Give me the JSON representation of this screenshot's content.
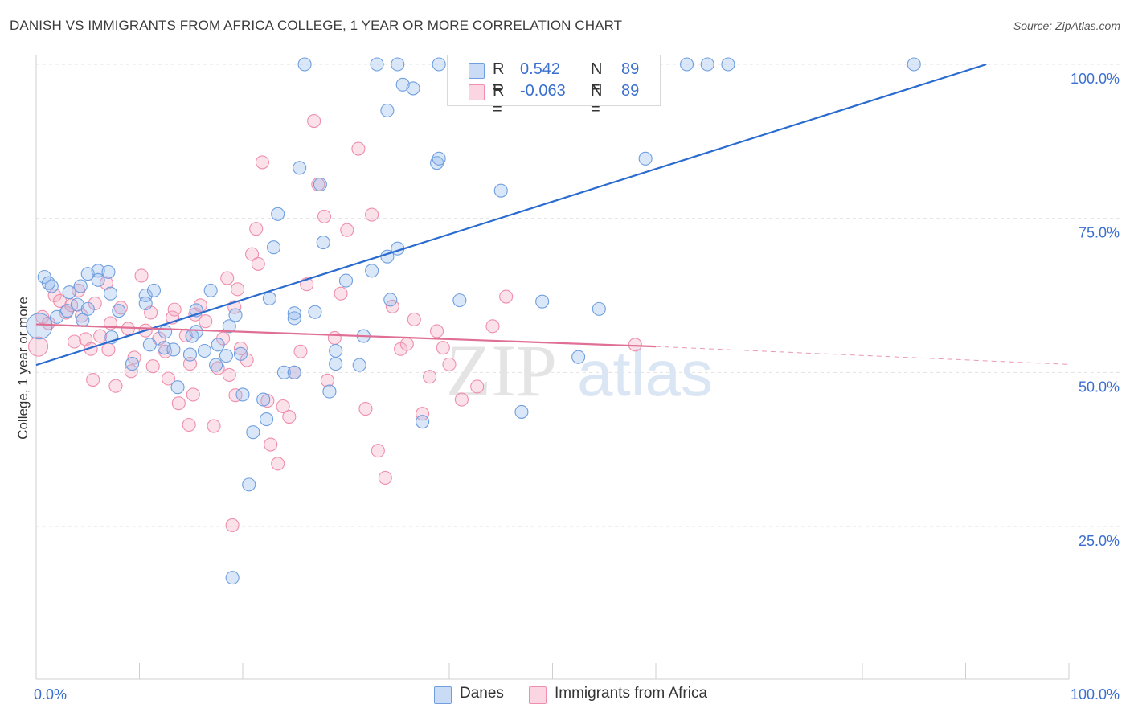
{
  "title": "DANISH VS IMMIGRANTS FROM AFRICA COLLEGE, 1 YEAR OR MORE CORRELATION CHART",
  "source": "Source: ZipAtlas.com",
  "watermark": {
    "zip": "ZIP",
    "atlas": "atlas"
  },
  "legend": {
    "rows": [
      {
        "r_label": "R =",
        "r_value": "0.542",
        "n_label": "N =",
        "n_value": "89",
        "color": "#a9c6ee",
        "border": "#6f9fe0"
      },
      {
        "r_label": "R =",
        "r_value": "-0.063",
        "n_label": "N =",
        "n_value": "89",
        "color": "#f7bfd0",
        "border": "#ef8fab"
      }
    ]
  },
  "bottom_legend": {
    "danes": "Danes",
    "africa": "Immigrants from Africa"
  },
  "chart_data": {
    "type": "scatter",
    "title": "DANISH VS IMMIGRANTS FROM AFRICA COLLEGE, 1 YEAR OR MORE CORRELATION CHART",
    "xlabel": "",
    "ylabel": "College, 1 year or more",
    "xlim": [
      0,
      100
    ],
    "ylim": [
      0,
      102
    ],
    "x_tick_labels": [
      "0.0%",
      "100.0%"
    ],
    "y_ticks": [
      25,
      50,
      75,
      100
    ],
    "y_tick_labels": [
      "25.0%",
      "50.0%",
      "75.0%",
      "100.0%"
    ],
    "grid": true,
    "legend_placement": "top-center",
    "series": [
      {
        "name": "Danes",
        "color": "#6f9fe0",
        "fill": "rgba(150,185,235,0.35)",
        "trend": {
          "x0": 0,
          "y0": 51.2,
          "x1": 92,
          "y1": 100,
          "color": "#2a6bcf"
        },
        "points": [
          [
            0.3,
            57.5
          ],
          [
            0.8,
            65.5
          ],
          [
            1.5,
            64
          ],
          [
            3,
            60
          ],
          [
            4,
            61
          ],
          [
            4.5,
            58.5
          ],
          [
            5,
            60.3
          ],
          [
            4.3,
            64
          ],
          [
            5,
            66
          ],
          [
            6,
            66.5
          ],
          [
            6,
            65
          ],
          [
            7.2,
            62.8
          ],
          [
            7,
            66.3
          ],
          [
            8,
            60
          ],
          [
            7.3,
            55.7
          ],
          [
            9.3,
            51.4
          ],
          [
            10.6,
            62.5
          ],
          [
            10.6,
            61.2
          ],
          [
            11.4,
            63.3
          ],
          [
            11,
            54.5
          ],
          [
            12.4,
            54
          ],
          [
            13.3,
            53.7
          ],
          [
            12.5,
            56.6
          ],
          [
            13.7,
            47.6
          ],
          [
            14.9,
            52.9
          ],
          [
            15.1,
            55.9
          ],
          [
            15.5,
            56.6
          ],
          [
            15.5,
            60.1
          ],
          [
            16.3,
            53.5
          ],
          [
            16.9,
            63.3
          ],
          [
            17.6,
            54.5
          ],
          [
            17.4,
            51.2
          ],
          [
            18.4,
            52.7
          ],
          [
            18.7,
            57.5
          ],
          [
            19.3,
            59.3
          ],
          [
            19.8,
            53
          ],
          [
            20,
            46.4
          ],
          [
            21,
            40.3
          ],
          [
            20.6,
            31.8
          ],
          [
            22,
            45.6
          ],
          [
            22.3,
            42.4
          ],
          [
            22.6,
            62
          ],
          [
            23,
            70.3
          ],
          [
            24,
            50
          ],
          [
            23.4,
            75.7
          ],
          [
            25,
            50
          ],
          [
            25,
            59.6
          ],
          [
            25,
            58.8
          ],
          [
            25.5,
            83.2
          ],
          [
            27,
            59.8
          ],
          [
            27.5,
            80.5
          ],
          [
            27.8,
            71.1
          ],
          [
            28.4,
            46.9
          ],
          [
            29,
            51.4
          ],
          [
            29,
            53.5
          ],
          [
            30,
            64.9
          ],
          [
            31.3,
            51.2
          ],
          [
            31.7,
            55.9
          ],
          [
            32.5,
            66.5
          ],
          [
            34,
            68.8
          ],
          [
            34.3,
            61.8
          ],
          [
            35,
            70.1
          ],
          [
            34,
            92.5
          ],
          [
            35.5,
            96.7
          ],
          [
            36.5,
            96.1
          ],
          [
            37.4,
            42
          ],
          [
            38.8,
            84
          ],
          [
            39,
            84.7
          ],
          [
            41,
            61.7
          ],
          [
            45,
            79.5
          ],
          [
            47,
            43.6
          ],
          [
            49,
            61.5
          ],
          [
            52.5,
            52.5
          ],
          [
            54.5,
            60.3
          ],
          [
            59,
            84.7
          ],
          [
            63,
            100
          ],
          [
            65,
            100
          ],
          [
            67,
            100
          ],
          [
            85,
            100
          ],
          [
            19,
            16.7
          ],
          [
            26,
            100
          ],
          [
            35,
            100
          ],
          [
            33,
            100
          ],
          [
            58,
            100
          ],
          [
            57,
            100
          ],
          [
            39,
            100
          ],
          [
            2,
            59
          ],
          [
            1.2,
            64.5
          ],
          [
            3.2,
            63
          ]
        ]
      },
      {
        "name": "Immigrants from Africa",
        "color": "#ef8fab",
        "fill": "rgba(244,170,195,0.35)",
        "trend": {
          "x0": 0,
          "y0": 57.8,
          "x1": 60,
          "y1": 54.2,
          "color": "#e06f94",
          "dash_to_x": 100,
          "dash_to_y": 51.3
        },
        "points": [
          [
            0.2,
            54.2
          ],
          [
            0.6,
            59
          ],
          [
            1.2,
            58
          ],
          [
            1.8,
            62.5
          ],
          [
            2.3,
            61.6
          ],
          [
            2.9,
            59.7
          ],
          [
            3.4,
            60.9
          ],
          [
            3.7,
            55
          ],
          [
            4.1,
            63.3
          ],
          [
            4.4,
            59.2
          ],
          [
            4.8,
            55.4
          ],
          [
            5.3,
            53.8
          ],
          [
            5.7,
            61.2
          ],
          [
            5.5,
            48.8
          ],
          [
            6.2,
            55.9
          ],
          [
            6.8,
            64.5
          ],
          [
            7.2,
            58
          ],
          [
            7,
            53.7
          ],
          [
            8.2,
            60.5
          ],
          [
            7.7,
            47.8
          ],
          [
            8.9,
            57.1
          ],
          [
            9.5,
            52.4
          ],
          [
            9.2,
            50.2
          ],
          [
            10.2,
            65.7
          ],
          [
            10.6,
            56.8
          ],
          [
            11.1,
            59.7
          ],
          [
            11.3,
            51
          ],
          [
            11.9,
            55.5
          ],
          [
            12.5,
            53.4
          ],
          [
            13.2,
            58.9
          ],
          [
            12.8,
            49
          ],
          [
            13.4,
            60.2
          ],
          [
            13.8,
            45
          ],
          [
            14.5,
            56
          ],
          [
            14.9,
            51.4
          ],
          [
            15.4,
            59.4
          ],
          [
            14.8,
            41.5
          ],
          [
            15.2,
            46.4
          ],
          [
            15.9,
            60.9
          ],
          [
            16.4,
            58.3
          ],
          [
            17.2,
            41.3
          ],
          [
            17.6,
            50.7
          ],
          [
            18.1,
            55.5
          ],
          [
            18.5,
            65.3
          ],
          [
            18.7,
            49.6
          ],
          [
            19.3,
            46.3
          ],
          [
            19.5,
            63.5
          ],
          [
            19.8,
            53.9
          ],
          [
            19.2,
            60.6
          ],
          [
            20.4,
            52
          ],
          [
            20.9,
            69.2
          ],
          [
            21.5,
            67.6
          ],
          [
            21.3,
            73.3
          ],
          [
            21.9,
            84.1
          ],
          [
            22.4,
            45.4
          ],
          [
            22.7,
            38.3
          ],
          [
            23.4,
            35.2
          ],
          [
            23.9,
            44.5
          ],
          [
            24.5,
            42.8
          ],
          [
            25,
            50
          ],
          [
            25.6,
            53.4
          ],
          [
            26.2,
            64.3
          ],
          [
            26.9,
            90.8
          ],
          [
            27.3,
            80.5
          ],
          [
            27.9,
            75.3
          ],
          [
            28.2,
            48.7
          ],
          [
            28.9,
            55.6
          ],
          [
            29.5,
            62.8
          ],
          [
            30.1,
            73.1
          ],
          [
            31.2,
            86.3
          ],
          [
            31.9,
            44.1
          ],
          [
            32.5,
            75.6
          ],
          [
            33.1,
            37.3
          ],
          [
            33.8,
            32.9
          ],
          [
            34.5,
            60.7
          ],
          [
            35.3,
            53.8
          ],
          [
            35.9,
            54.6
          ],
          [
            36.6,
            58.6
          ],
          [
            37.4,
            43.3
          ],
          [
            38.1,
            49.3
          ],
          [
            38.8,
            56.7
          ],
          [
            39.4,
            54
          ],
          [
            40,
            51.3
          ],
          [
            41.2,
            45.6
          ],
          [
            42.7,
            47.7
          ],
          [
            44.2,
            57.5
          ],
          [
            45.5,
            62.3
          ],
          [
            58,
            54.5
          ],
          [
            19,
            25.2
          ]
        ]
      }
    ]
  }
}
